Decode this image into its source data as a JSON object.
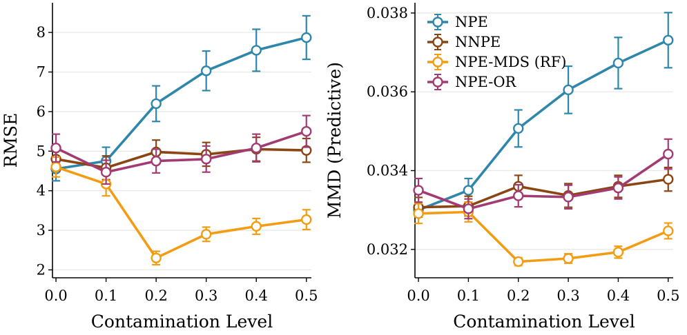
{
  "chart_data": [
    {
      "type": "line",
      "id": "rmse",
      "xlabel": "Contamination Level",
      "ylabel": "RMSE",
      "x": [
        0.0,
        0.1,
        0.2,
        0.3,
        0.4,
        0.5
      ],
      "x_tick_labels": [
        "0.0",
        "0.1",
        "0.2",
        "0.3",
        "0.4",
        "0.5"
      ],
      "xlim": [
        -0.007,
        0.51
      ],
      "ylim": [
        1.8,
        8.75
      ],
      "y_ticks": [
        2,
        3,
        4,
        5,
        6,
        7,
        8
      ],
      "y_tick_labels": [
        "2",
        "3",
        "4",
        "5",
        "6",
        "7",
        "8"
      ],
      "grid": true,
      "series": [
        {
          "name": "NPE",
          "color": "#2e86ab",
          "values": [
            4.55,
            4.75,
            6.2,
            7.03,
            7.55,
            7.87
          ],
          "err": [
            0.3,
            0.35,
            0.45,
            0.5,
            0.53,
            0.55
          ]
        },
        {
          "name": "NNPE",
          "color": "#8b4513",
          "values": [
            4.8,
            4.58,
            4.98,
            4.92,
            5.05,
            5.02
          ],
          "err": [
            0.3,
            0.3,
            0.3,
            0.3,
            0.3,
            0.3
          ]
        },
        {
          "name": "NPE-MDS (RF)",
          "color": "#f39c12",
          "values": [
            4.6,
            4.17,
            2.3,
            2.9,
            3.1,
            3.27
          ],
          "err": [
            0.25,
            0.3,
            0.17,
            0.18,
            0.2,
            0.25
          ]
        },
        {
          "name": "NPE-OR",
          "color": "#a23b72",
          "values": [
            5.08,
            4.47,
            4.75,
            4.8,
            5.08,
            5.5
          ],
          "err": [
            0.35,
            0.3,
            0.3,
            0.33,
            0.35,
            0.4
          ]
        }
      ]
    },
    {
      "type": "line",
      "id": "mmd",
      "xlabel": "Contamination Level",
      "ylabel": "MMD (Predictive)",
      "x": [
        0.0,
        0.1,
        0.2,
        0.3,
        0.4,
        0.5
      ],
      "x_tick_labels": [
        "0.0",
        "0.1",
        "0.2",
        "0.3",
        "0.4",
        "0.5"
      ],
      "xlim": [
        -0.007,
        0.51
      ],
      "ylim": [
        0.03128,
        0.03826
      ],
      "y_ticks": [
        0.032,
        0.034,
        0.036,
        0.038
      ],
      "y_tick_labels": [
        "0.032",
        "0.034",
        "0.036",
        "0.038"
      ],
      "grid": true,
      "legend": "top-left",
      "series": [
        {
          "name": "NPE",
          "color": "#2e86ab",
          "values": [
            0.033,
            0.0335,
            0.03507,
            0.03605,
            0.03673,
            0.03731
          ],
          "err": [
            0.00012,
            0.0003,
            0.00047,
            0.0006,
            0.00065,
            0.0007
          ]
        },
        {
          "name": "NNPE",
          "color": "#8b4513",
          "values": [
            0.03307,
            0.0331,
            0.0336,
            0.03337,
            0.0336,
            0.03378
          ],
          "err": [
            0.00025,
            0.00025,
            0.00028,
            0.0003,
            0.00028,
            0.0003
          ]
        },
        {
          "name": "NPE-MDS (RF)",
          "color": "#f39c12",
          "values": [
            0.03291,
            0.03295,
            0.03169,
            0.03177,
            0.03193,
            0.03247
          ],
          "err": [
            0.00025,
            0.00025,
            0.0001,
            0.00012,
            0.00015,
            0.0002
          ]
        },
        {
          "name": "NPE-OR",
          "color": "#a23b72",
          "values": [
            0.0335,
            0.03303,
            0.03336,
            0.03333,
            0.03356,
            0.03442
          ],
          "err": [
            0.0003,
            0.00025,
            0.00028,
            0.0003,
            0.00028,
            0.00038
          ]
        }
      ]
    }
  ]
}
